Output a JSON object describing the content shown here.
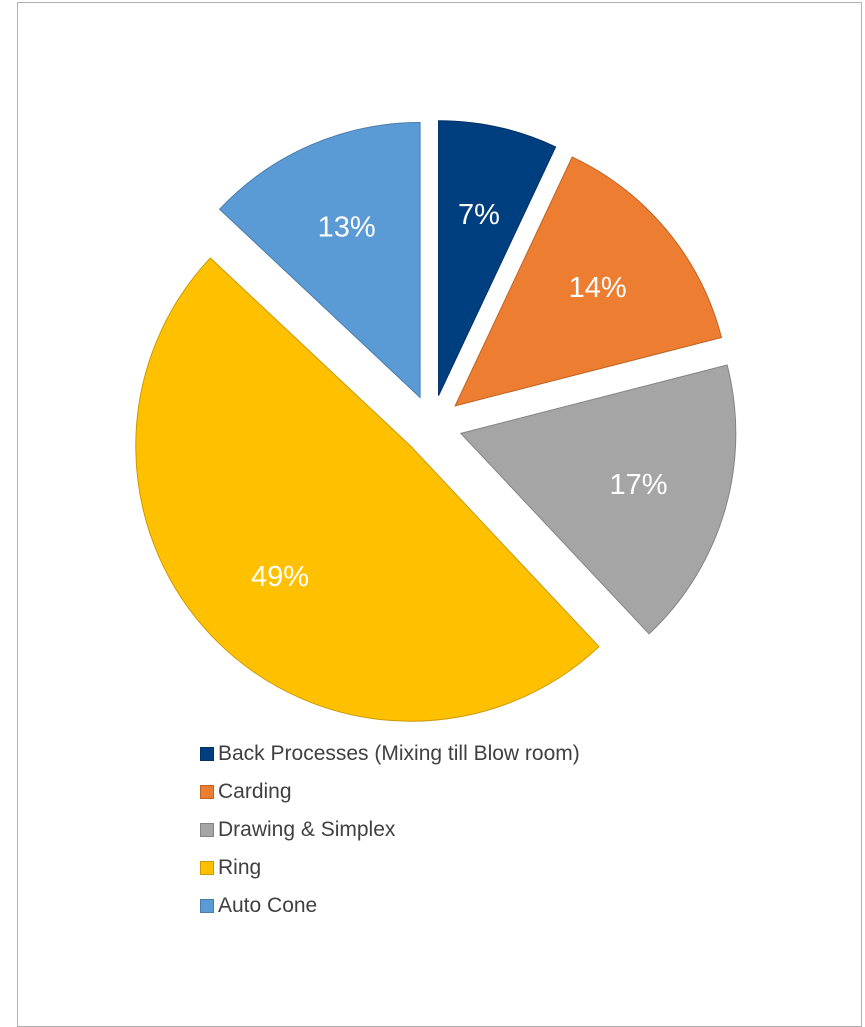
{
  "chart_data": {
    "type": "pie",
    "title": "",
    "exploded": true,
    "legend_position": "bottom",
    "slices": [
      {
        "name": "Back Processes (Mixing till Blow room)",
        "value": 7,
        "label": "7%",
        "color": "#003f7f"
      },
      {
        "name": "Carding",
        "value": 14,
        "label": "14%",
        "color": "#ed7d31"
      },
      {
        "name": "Drawing & Simplex",
        "value": 17,
        "label": "17%",
        "color": "#a5a5a5"
      },
      {
        "name": "Ring",
        "value": 49,
        "label": "49%",
        "color": "#ffc000"
      },
      {
        "name": "Auto Cone",
        "value": 13,
        "label": "13%",
        "color": "#5b9bd5"
      }
    ]
  }
}
